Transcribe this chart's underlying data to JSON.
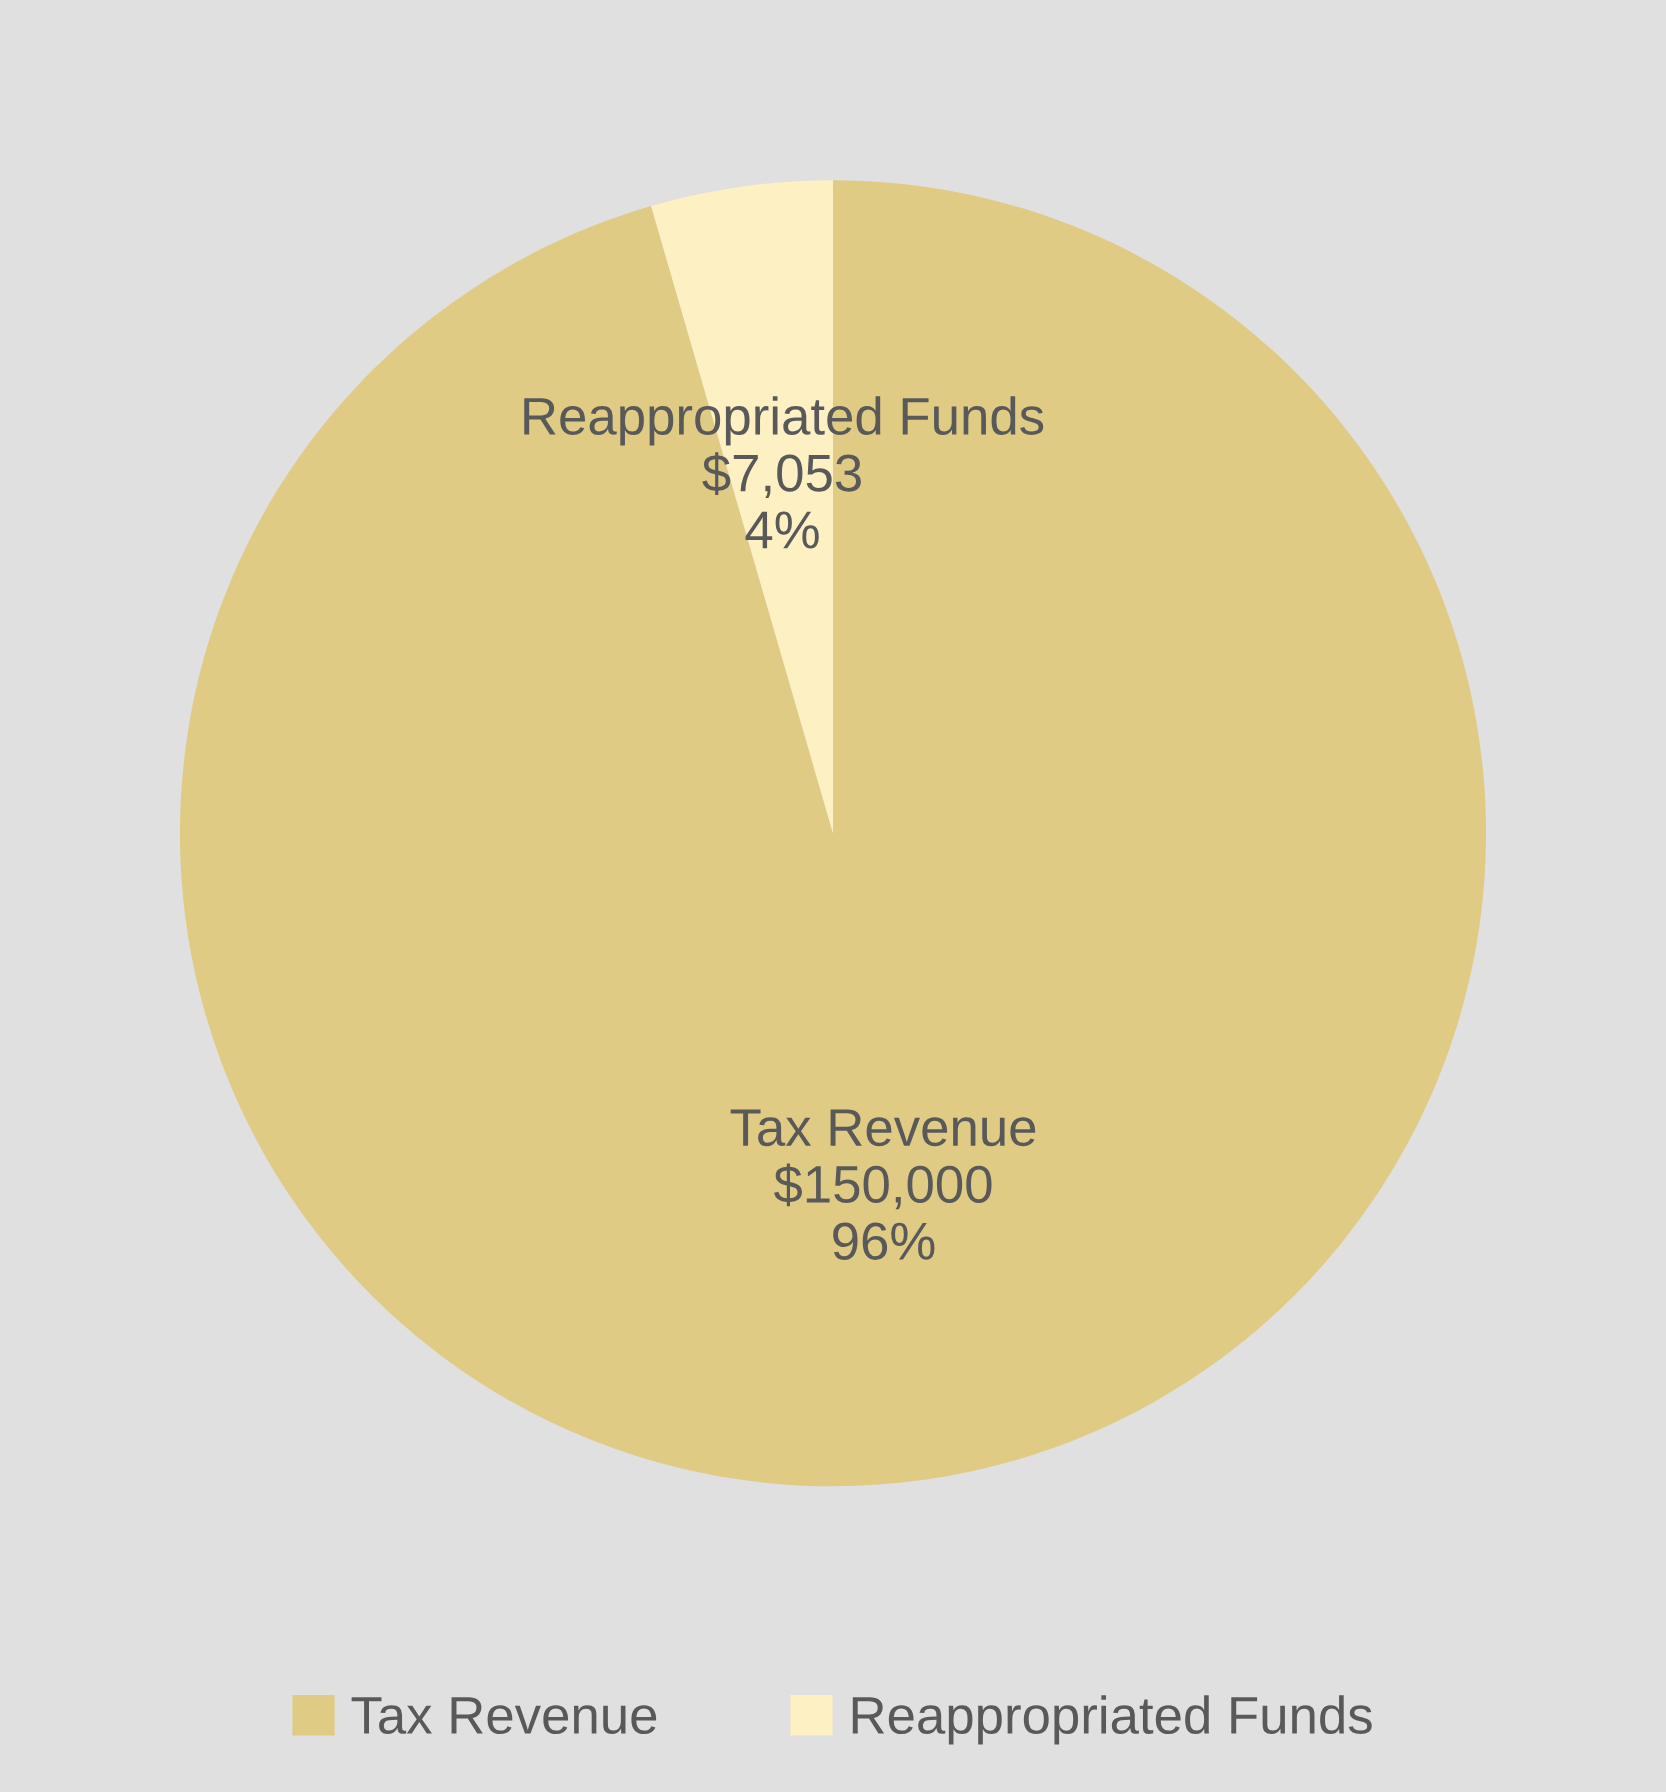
{
  "chart_data": {
    "type": "pie",
    "categories": [
      "Tax Revenue",
      "Reappropriated Funds"
    ],
    "values": [
      150000,
      7053
    ],
    "colors": [
      "#e0cb85",
      "#fdf0c2"
    ],
    "value_labels": [
      "$150,000\n96%",
      "$7,053\n4%"
    ],
    "legend": "bottom"
  }
}
